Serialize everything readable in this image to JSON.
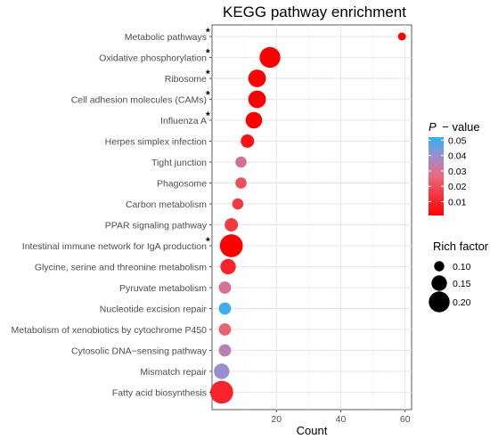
{
  "chart_data": {
    "type": "scatter",
    "title": "KEGG pathway enrichment",
    "xlabel": "Count",
    "ylabel": "",
    "xlim": [
      0,
      62
    ],
    "x_ticks": [
      20,
      40,
      60
    ],
    "grid": true,
    "categories": [
      "Metabolic pathways",
      "Oxidative phosphorylation",
      "Ribosome",
      "Cell adhesion molecules (CAMs)",
      "Influenza A",
      "Herpes simplex infection",
      "Tight junction",
      "Phagosome",
      "Carbon metabolism",
      "PPAR signaling pathway",
      "Intestinal immune network for IgA production",
      "Glycine, serine and threonine metabolism",
      "Pyruvate metabolism",
      "Nucleotide excision repair",
      "Metabolism of xenobiotics by cytochrome P450",
      "Cytosolic DNA−sensing pathway",
      "Mismatch repair",
      "Fatty acid biosynthesis"
    ],
    "starred": [
      true,
      true,
      true,
      true,
      true,
      false,
      false,
      false,
      false,
      false,
      true,
      false,
      false,
      false,
      false,
      false,
      false,
      false
    ],
    "count": [
      59,
      18,
      14,
      14,
      13,
      11,
      9,
      9,
      8,
      6,
      6,
      5,
      4,
      4,
      4,
      4,
      3,
      3
    ],
    "p_value": [
      0.001,
      0.001,
      0.001,
      0.001,
      0.001,
      0.005,
      0.03,
      0.02,
      0.015,
      0.015,
      0.001,
      0.01,
      0.03,
      0.05,
      0.025,
      0.035,
      0.04,
      0.01
    ],
    "rich_factor": [
      0.08,
      0.2,
      0.17,
      0.17,
      0.16,
      0.13,
      0.11,
      0.11,
      0.11,
      0.13,
      0.22,
      0.15,
      0.12,
      0.12,
      0.12,
      0.12,
      0.15,
      0.22
    ],
    "color_legend": {
      "title_italic": "P",
      "title_rest": "− value",
      "ticks": [
        "0.05",
        "0.04",
        "0.03",
        "0.02",
        "0.01"
      ],
      "tick_values": [
        0.05,
        0.04,
        0.03,
        0.02,
        0.01
      ],
      "range": [
        0.001,
        0.052
      ],
      "color_low": "#ff0000",
      "color_mid": "#d98ca0",
      "color_high": "#2fb4ef"
    },
    "size_legend": {
      "title": "Rich factor",
      "labels": [
        "0.10",
        "0.15",
        "0.20"
      ],
      "values": [
        0.1,
        0.15,
        0.2
      ]
    },
    "star_symbol": "*"
  }
}
